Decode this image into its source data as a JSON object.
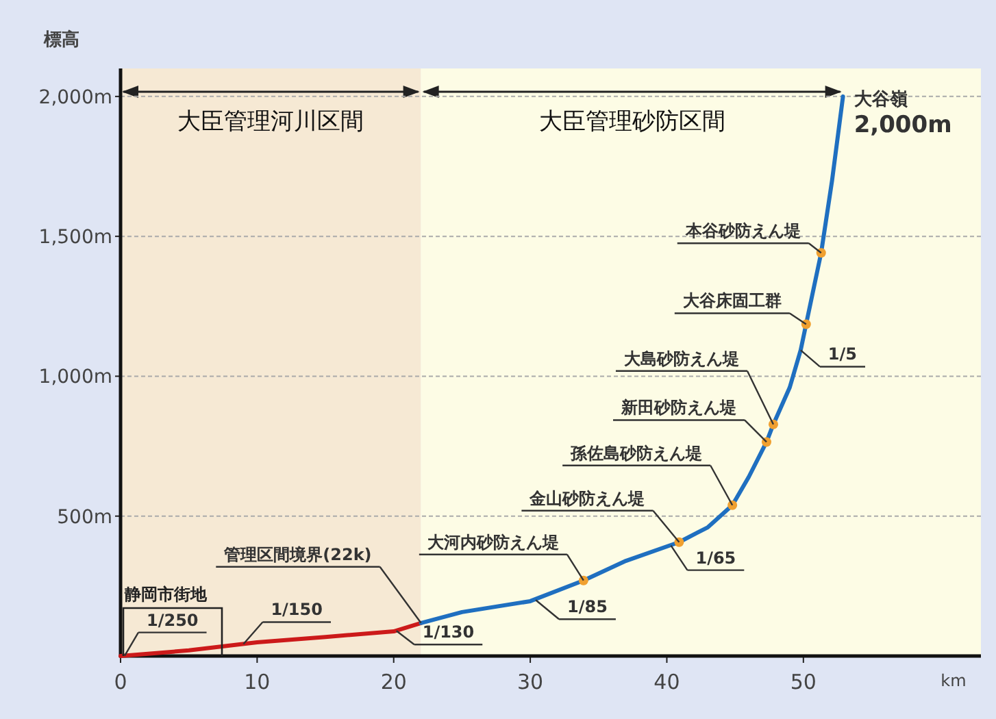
{
  "chart_data": {
    "type": "line",
    "xlabel": "km",
    "ylabel": "標高",
    "xlim": [
      0,
      63
    ],
    "xticks": [
      0,
      10,
      20,
      30,
      40,
      50
    ],
    "ylim": [
      0,
      2100
    ],
    "yticks": [
      {
        "value": 500,
        "label": "500m"
      },
      {
        "value": 1000,
        "label": "1,000m"
      },
      {
        "value": 1500,
        "label": "1,500m"
      },
      {
        "value": 2000,
        "label": "2,000m"
      }
    ],
    "grid": "y",
    "series": [
      {
        "color": "#cc1a1a",
        "x": [
          0,
          5,
          10,
          15,
          20,
          22
        ],
        "values": [
          0,
          20,
          49,
          68,
          88,
          118
        ]
      },
      {
        "color": "#1f6fc0",
        "x": [
          22,
          25,
          30,
          33.9,
          37,
          40.9,
          43,
          44.8,
          46,
          47.3,
          47.8,
          49,
          49.8,
          50.2,
          51.3,
          52.1,
          52.9
        ],
        "values": [
          118,
          157,
          196,
          270,
          340,
          407,
          460,
          539,
          640,
          765,
          828,
          960,
          1093,
          1186,
          1441,
          1700,
          2000
        ]
      },
      {
        "type": "scatter",
        "color": "#f0a030",
        "marker": "circle",
        "x": [
          51.3,
          50.2,
          47.8,
          47.3,
          44.8,
          40.9,
          33.9
        ],
        "values": [
          1441,
          1186,
          828,
          765,
          539,
          407,
          270
        ]
      }
    ],
    "bands": [
      {
        "axis": "x",
        "from": 0,
        "to": 22,
        "label": "大臣管理河川区間",
        "color": "#f6e9d4"
      },
      {
        "axis": "x",
        "from": 22,
        "to": 63,
        "label": "大臣管理砂防区間",
        "color": "#fdfce5"
      }
    ],
    "annotations": [
      {
        "text": "大谷嶺\n2,000m",
        "x": 52.9,
        "y": 2000
      },
      {
        "text": "本谷砂防えん堤",
        "x": 51.3,
        "y": 1441
      },
      {
        "text": "大谷床固工群",
        "x": 50.2,
        "y": 1186
      },
      {
        "text": "大島砂防えん堤",
        "x": 47.8,
        "y": 828
      },
      {
        "text": "新田砂防えん堤",
        "x": 47.3,
        "y": 765
      },
      {
        "text": "孫佐島砂防えん堤",
        "x": 44.8,
        "y": 539
      },
      {
        "text": "金山砂防えん堤",
        "x": 40.9,
        "y": 407
      },
      {
        "text": "大河内砂防えん堤",
        "x": 33.9,
        "y": 270
      },
      {
        "text": "管理区間境界(22k)",
        "x": 22,
        "y": 118
      },
      {
        "text": "1/250",
        "x": 0.3,
        "y": 1
      },
      {
        "text": "1/150",
        "x": 9,
        "y": 43
      },
      {
        "text": "1/130",
        "x": 20.2,
        "y": 90
      },
      {
        "text": "1/85",
        "x": 30.4,
        "y": 200
      },
      {
        "text": "1/65",
        "x": 40.3,
        "y": 395
      },
      {
        "text": "1/5",
        "x": 49.8,
        "y": 1093
      },
      "静岡市街地"
    ]
  }
}
